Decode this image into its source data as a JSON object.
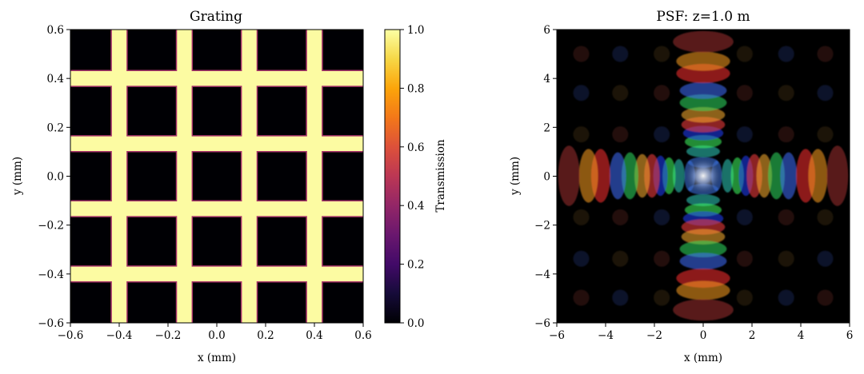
{
  "chart_data": [
    {
      "type": "heatmap",
      "title": "Grating",
      "xlabel": "x (mm)",
      "ylabel": "y (mm)",
      "xlim": [
        -0.6,
        0.6
      ],
      "ylim": [
        -0.6,
        0.6
      ],
      "xticks": [
        "−0.6",
        "−0.4",
        "−0.2",
        "0.0",
        "0.2",
        "0.4",
        "0.6"
      ],
      "yticks": [
        "−0.6",
        "−0.4",
        "−0.2",
        "0.0",
        "0.2",
        "0.4",
        "0.6"
      ],
      "colormap": "inferno",
      "grating": {
        "vertical_bar_centers": [
          -0.4,
          -0.133,
          0.133,
          0.4
        ],
        "horizontal_bar_centers": [
          -0.4,
          -0.133,
          0.133,
          0.4
        ],
        "bar_width": 0.06,
        "bar_value": 1.0,
        "background_value": 0.0
      },
      "colorbar": {
        "label": "Transmission",
        "range": [
          0.0,
          1.0
        ],
        "ticks": [
          "0.0",
          "0.2",
          "0.4",
          "0.6",
          "0.8",
          "1.0"
        ]
      }
    },
    {
      "type": "heatmap",
      "title": "PSF: z=1.0 m",
      "xlabel": "x (mm)",
      "ylabel": "y (mm)",
      "xlim": [
        -6,
        6
      ],
      "ylim": [
        -6,
        6
      ],
      "xticks": [
        "−6",
        "−4",
        "−2",
        "0",
        "2",
        "4",
        "6"
      ],
      "yticks": [
        "−6",
        "−4",
        "−2",
        "0",
        "2",
        "4",
        "6"
      ],
      "colormap": "rgb-spectral"
    }
  ]
}
